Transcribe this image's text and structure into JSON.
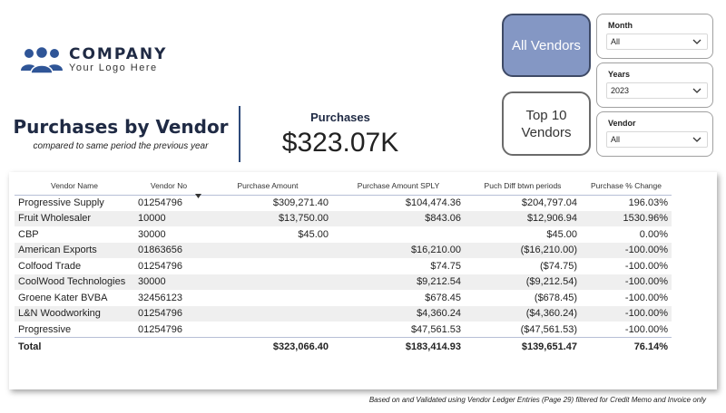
{
  "logo": {
    "name": "COMPANY",
    "tagline": "Your Logo Here"
  },
  "header": {
    "title": "Purchases by Vendor",
    "subtitle": "compared to same period the previous year"
  },
  "kpi": {
    "label": "Purchases",
    "value": "$323.07K"
  },
  "vendor_buttons": {
    "all": "All Vendors",
    "top10": "Top 10 Vendors"
  },
  "slicers": {
    "month": {
      "label": "Month",
      "value": "All"
    },
    "years": {
      "label": "Years",
      "value": "2023"
    },
    "vendor": {
      "label": "Vendor",
      "value": "All"
    }
  },
  "table": {
    "columns": [
      "Vendor Name",
      "Vendor No",
      "Purchase Amount",
      "Purchase Amount SPLY",
      "Puch Diff btwn periods",
      "Purchase % Change"
    ],
    "rows": [
      [
        "Progressive Supply",
        "01254796",
        "$309,271.40",
        "$104,474.36",
        "$204,797.04",
        "196.03%"
      ],
      [
        "Fruit Wholesaler",
        "10000",
        "$13,750.00",
        "$843.06",
        "$12,906.94",
        "1530.96%"
      ],
      [
        "CBP",
        "30000",
        "$45.00",
        "",
        "$45.00",
        "0.00%"
      ],
      [
        "American Exports",
        "01863656",
        "",
        "$16,210.00",
        "($16,210.00)",
        "-100.00%"
      ],
      [
        "Colfood Trade",
        "01254796",
        "",
        "$74.75",
        "($74.75)",
        "-100.00%"
      ],
      [
        "CoolWood Technologies",
        "30000",
        "",
        "$9,212.54",
        "($9,212.54)",
        "-100.00%"
      ],
      [
        "Groene Kater BVBA",
        "32456123",
        "",
        "$678.45",
        "($678.45)",
        "-100.00%"
      ],
      [
        "L&N Woodworking",
        "01254796",
        "",
        "$4,360.24",
        "($4,360.24)",
        "-100.00%"
      ],
      [
        "Progressive",
        "01254796",
        "",
        "$47,561.53",
        "($47,561.53)",
        "-100.00%"
      ]
    ],
    "total": [
      "Total",
      "",
      "$323,066.40",
      "$183,414.93",
      "$139,651.47",
      "76.14%"
    ]
  },
  "footnote": "Based on and Validated using Vendor Ledger Entries  (Page 29) filtered for Credit Memo and Invoice only",
  "colors": {
    "accent": "#8497c4",
    "title": "#1f2a44",
    "logo_icon": "#2f5597"
  },
  "icons": {
    "logo": "people-group-icon",
    "dropdown": "chevron-down-icon",
    "sort": "sort-desc-icon"
  }
}
